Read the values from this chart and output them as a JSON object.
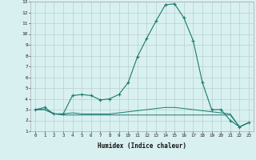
{
  "xlabel": "Humidex (Indice chaleur)",
  "x": [
    0,
    1,
    2,
    3,
    4,
    5,
    6,
    7,
    8,
    9,
    10,
    11,
    12,
    13,
    14,
    15,
    16,
    17,
    18,
    19,
    20,
    21,
    22,
    23
  ],
  "line1": [
    3.0,
    3.2,
    2.6,
    2.6,
    4.3,
    4.4,
    4.3,
    3.9,
    4.0,
    4.4,
    5.5,
    7.9,
    9.6,
    11.2,
    12.7,
    12.8,
    11.5,
    9.4,
    5.5,
    3.0,
    3.0,
    2.0,
    1.4,
    1.8
  ],
  "line2": [
    3.0,
    3.0,
    2.6,
    2.6,
    2.7,
    2.6,
    2.6,
    2.6,
    2.6,
    2.7,
    2.8,
    2.9,
    3.0,
    3.1,
    3.2,
    3.2,
    3.1,
    3.0,
    2.9,
    2.8,
    2.7,
    2.6,
    1.4,
    1.8
  ],
  "line3": [
    3.0,
    3.0,
    2.6,
    2.5,
    2.5,
    2.5,
    2.5,
    2.5,
    2.5,
    2.5,
    2.5,
    2.5,
    2.5,
    2.5,
    2.5,
    2.5,
    2.5,
    2.5,
    2.5,
    2.5,
    2.5,
    2.5,
    1.4,
    1.8
  ],
  "line_color": "#1a7a6e",
  "bg_color": "#d9f0f0",
  "grid_color": "#b8d0d0",
  "xlim": [
    0,
    23
  ],
  "ylim": [
    1,
    13
  ],
  "yticks": [
    1,
    2,
    3,
    4,
    5,
    6,
    7,
    8,
    9,
    10,
    11,
    12,
    13
  ],
  "xticks": [
    0,
    1,
    2,
    3,
    4,
    5,
    6,
    7,
    8,
    9,
    10,
    11,
    12,
    13,
    14,
    15,
    16,
    17,
    18,
    19,
    20,
    21,
    22,
    23
  ]
}
